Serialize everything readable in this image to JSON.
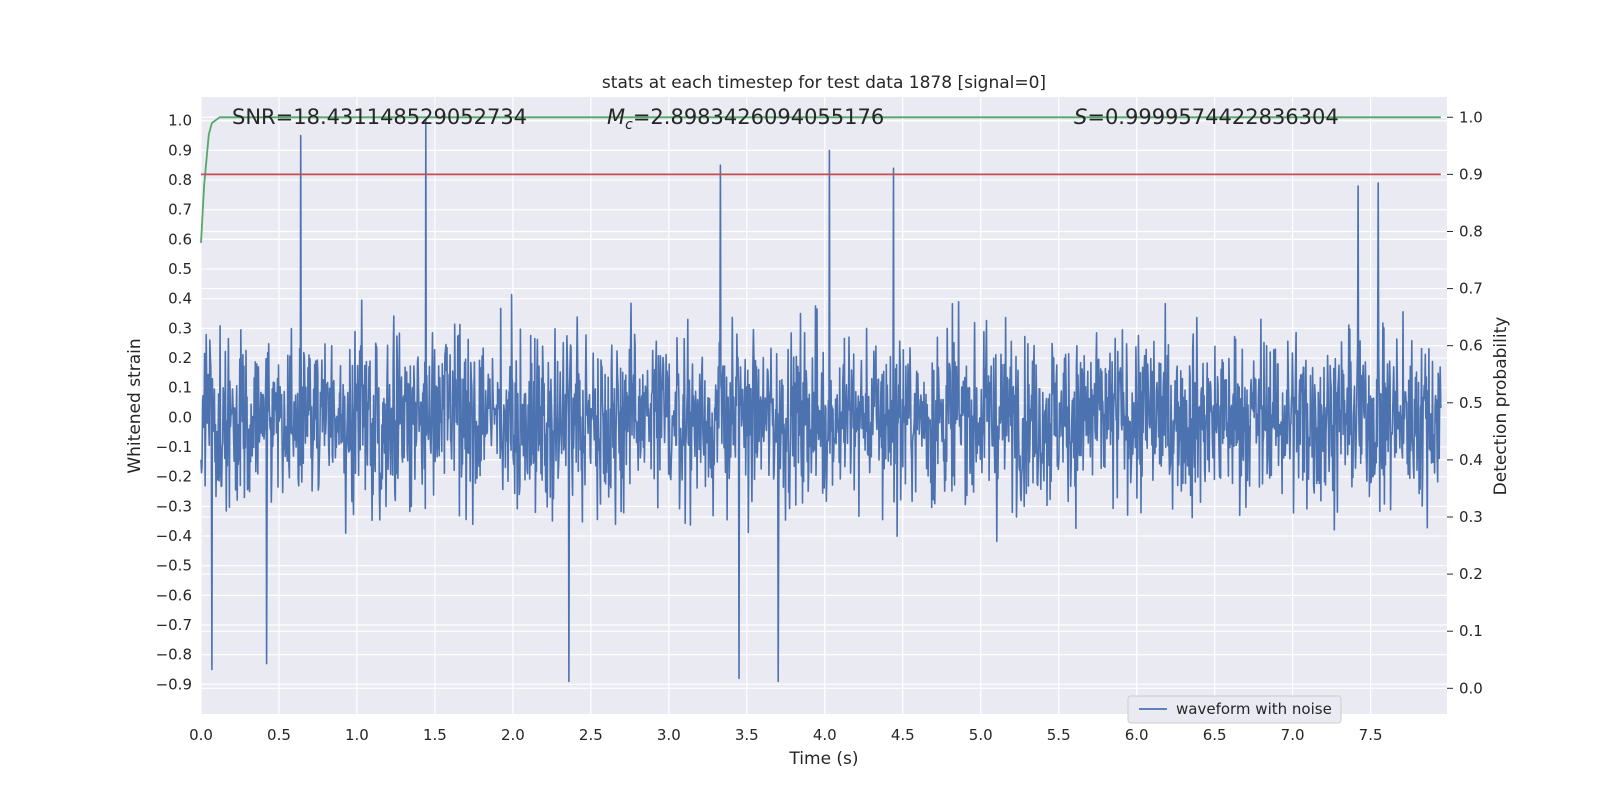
{
  "chart_data": {
    "type": "line",
    "title": "stats at each timestep for test data 1878 [signal=0]",
    "xlabel": "Time (s)",
    "ylabel": "Whitened strain",
    "y2label": "Detection probability",
    "xlim": [
      0.0,
      7.99
    ],
    "ylim": [
      -1.0,
      1.08
    ],
    "y2lim": [
      -0.045,
      1.0355
    ],
    "x_ticks": [
      0.0,
      0.5,
      1.0,
      1.5,
      2.0,
      2.5,
      3.0,
      3.5,
      4.0,
      4.5,
      5.0,
      5.5,
      6.0,
      6.5,
      7.0,
      7.5
    ],
    "x_tick_labels": [
      "0.0",
      "0.5",
      "1.0",
      "1.5",
      "2.0",
      "2.5",
      "3.0",
      "3.5",
      "4.0",
      "4.5",
      "5.0",
      "5.5",
      "6.0",
      "6.5",
      "7.0",
      "7.5"
    ],
    "y_ticks": [
      -0.9,
      -0.8,
      -0.7,
      -0.6,
      -0.5,
      -0.4,
      -0.3,
      -0.2,
      -0.1,
      0.0,
      0.1,
      0.2,
      0.3,
      0.4,
      0.5,
      0.6,
      0.7,
      0.8,
      0.9,
      1.0
    ],
    "y_tick_labels": [
      "−0.9",
      "−0.8",
      "−0.7",
      "−0.6",
      "−0.5",
      "−0.4",
      "−0.3",
      "−0.2",
      "−0.1",
      "0.0",
      "0.1",
      "0.2",
      "0.3",
      "0.4",
      "0.5",
      "0.6",
      "0.7",
      "0.8",
      "0.9",
      "1.0"
    ],
    "y2_ticks": [
      0.0,
      0.1,
      0.2,
      0.3,
      0.4,
      0.5,
      0.6,
      0.7,
      0.8,
      0.9,
      1.0
    ],
    "y2_tick_labels": [
      "0.0",
      "0.1",
      "0.2",
      "0.3",
      "0.4",
      "0.5",
      "0.6",
      "0.7",
      "0.8",
      "0.9",
      "1.0"
    ],
    "grid": true,
    "background": "#eaeaf2",
    "legend": {
      "placement": "lower-right",
      "entries": [
        "waveform with noise"
      ]
    },
    "annotations": {
      "snr": "SNR=18.431148529052734",
      "mc_symbol": "M",
      "mc_sub": "c",
      "mc_value": "=2.8983426094055176",
      "s_symbol": "S",
      "s_value": "=0.9999574422836304"
    },
    "series": [
      {
        "name": "waveform with noise",
        "axis": "left",
        "color": "#4c72b0",
        "kind": "noise",
        "sample_count": 2400,
        "envelope": [
          -0.55,
          0.55
        ],
        "peaks": [
          {
            "x": 0.64,
            "y": 0.95
          },
          {
            "x": 1.44,
            "y": 1.0
          },
          {
            "x": 3.33,
            "y": 0.85
          },
          {
            "x": 4.03,
            "y": 0.9
          },
          {
            "x": 4.44,
            "y": 0.84
          },
          {
            "x": 7.42,
            "y": 0.78
          },
          {
            "x": 7.55,
            "y": 0.79
          },
          {
            "x": 2.36,
            "y": -0.89
          },
          {
            "x": 3.45,
            "y": -0.88
          },
          {
            "x": 3.7,
            "y": -0.89
          },
          {
            "x": 0.07,
            "y": -0.85
          },
          {
            "x": 0.42,
            "y": -0.83
          }
        ]
      },
      {
        "axis": "right",
        "color": "#55a868",
        "x": [
          0.0,
          0.02,
          0.05,
          0.07,
          0.12,
          7.95
        ],
        "y": [
          0.78,
          0.88,
          0.97,
          0.99,
          1.0,
          1.0
        ]
      },
      {
        "axis": "right",
        "color": "#c44e52",
        "x": [
          0.0,
          7.95
        ],
        "y": [
          0.9,
          0.9
        ]
      }
    ]
  }
}
